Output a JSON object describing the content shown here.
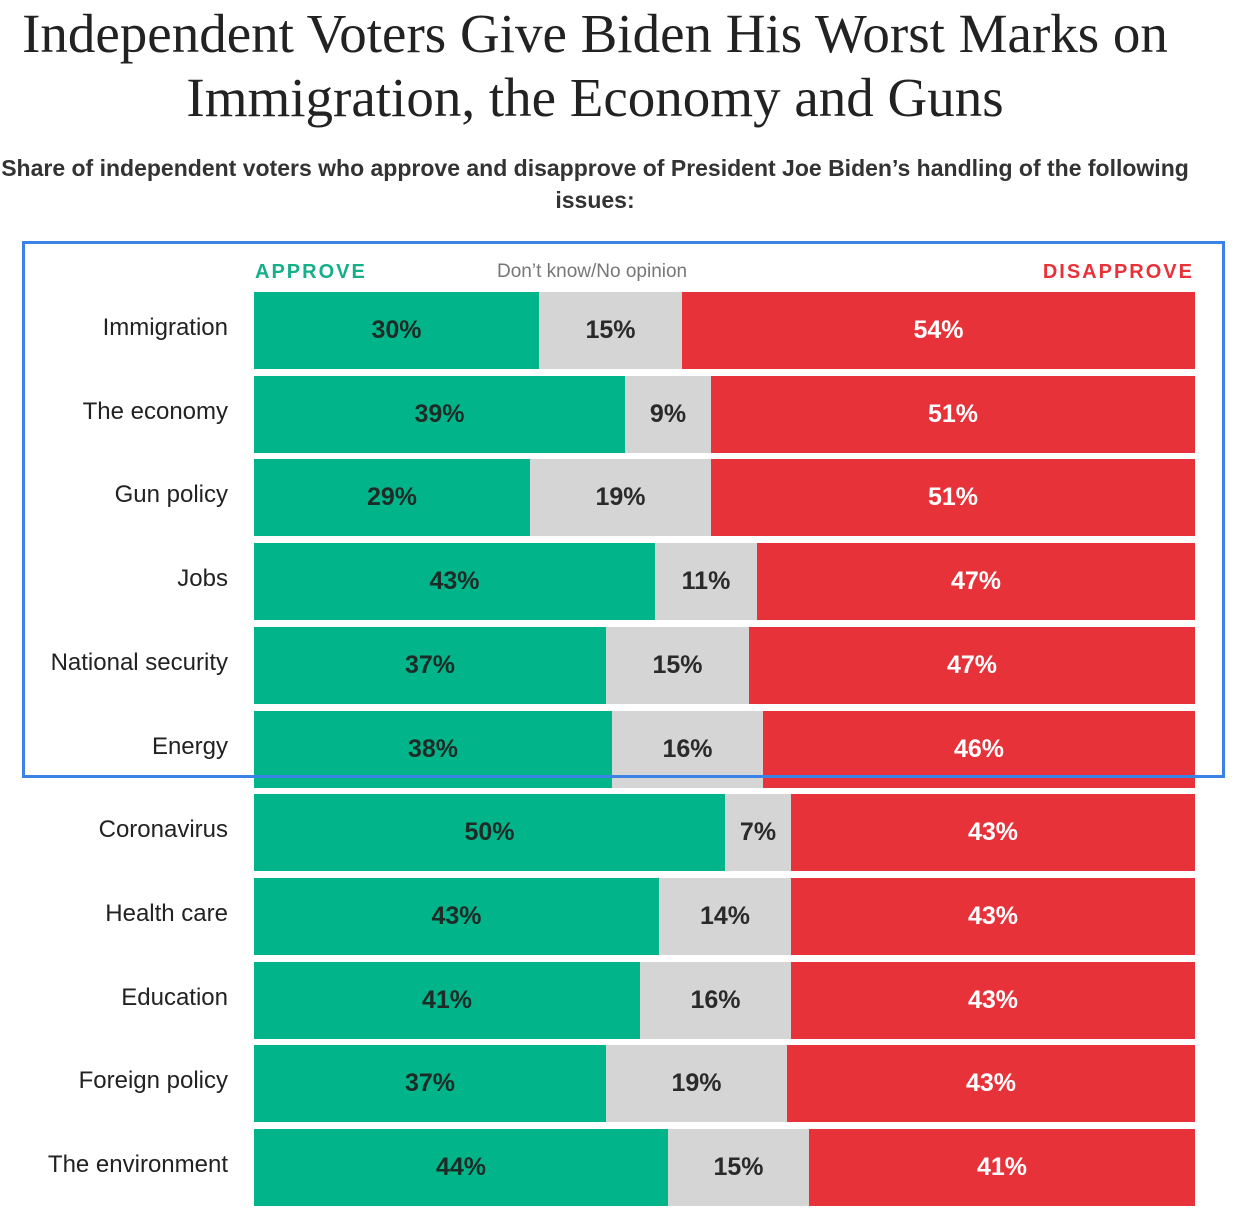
{
  "title": "Independent Voters Give Biden His Worst Marks on Immigration, the Economy and Guns",
  "subtitle": "Share of independent voters who approve and disapprove of President Joe Biden’s handling of the following issues:",
  "legend": {
    "approve": "APPROVE",
    "dont_know": "Don’t know/No opinion",
    "disapprove": "DISAPPROVE"
  },
  "colors": {
    "approve": "#02b48a",
    "dont_know": "#d5d5d5",
    "disapprove": "#e8323a",
    "highlight": "#3b82e6"
  },
  "chart_data": {
    "type": "bar",
    "orientation": "horizontal-stacked",
    "categories": [
      "Immigration",
      "The economy",
      "Gun policy",
      "Jobs",
      "National security",
      "Energy",
      "Coronavirus",
      "Health care",
      "Education",
      "Foreign policy",
      "The environment"
    ],
    "series": [
      {
        "name": "APPROVE",
        "values": [
          30,
          39,
          29,
          43,
          37,
          38,
          50,
          43,
          41,
          37,
          44
        ]
      },
      {
        "name": "Don’t know/No opinion",
        "values": [
          15,
          9,
          19,
          11,
          15,
          16,
          7,
          14,
          16,
          19,
          15
        ]
      },
      {
        "name": "DISAPPROVE",
        "values": [
          54,
          51,
          51,
          47,
          47,
          46,
          43,
          43,
          43,
          43,
          41
        ]
      }
    ],
    "value_suffix": "%",
    "xlim": [
      0,
      100
    ]
  }
}
